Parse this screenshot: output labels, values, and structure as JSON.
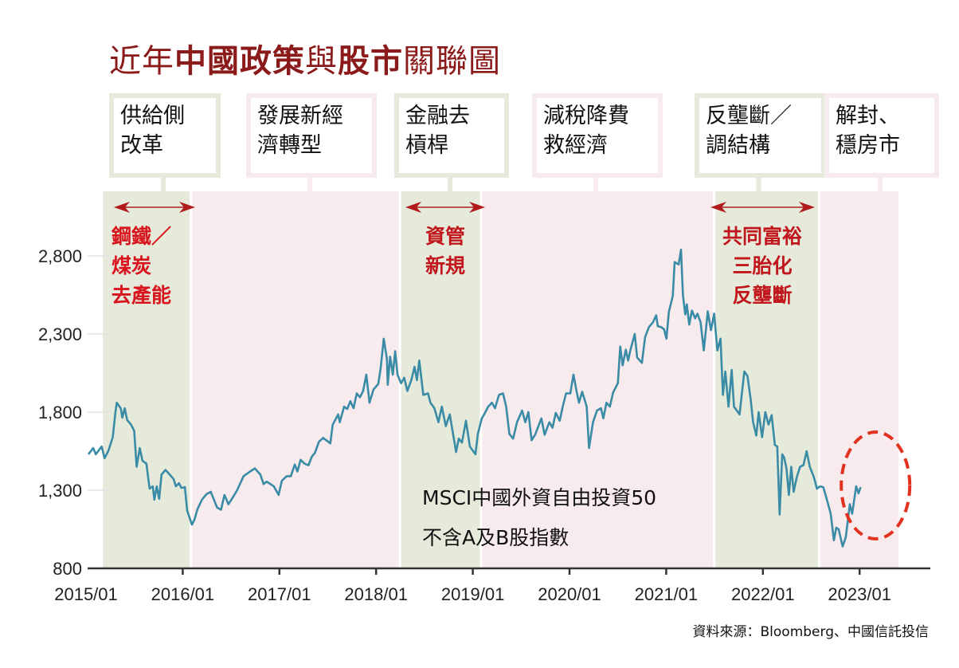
{
  "title": {
    "part1": "近年",
    "part2": "中國政策",
    "part3": "與",
    "part4": "股市",
    "part5": "關聯圖"
  },
  "policies": [
    {
      "label": "供給側\n改革",
      "band": "green"
    },
    {
      "label": "發展新經\n濟轉型",
      "band": "pink"
    },
    {
      "label": "金融去\n槓桿",
      "band": "green"
    },
    {
      "label": "減稅降費\n救經濟",
      "band": "pink"
    },
    {
      "label": "反壟斷／\n調結構",
      "band": "green"
    },
    {
      "label": "解封、\n穩房市",
      "band": "pink"
    }
  ],
  "annotations": [
    {
      "label": "鋼鐵／\n煤炭\n去產能"
    },
    {
      "label": "資管\n新規"
    },
    {
      "label": "共同富裕\n三胎化\n反壟斷"
    }
  ],
  "legend_text": "MSCI中國外資自由投資50\n不含A及B股指數",
  "source": "資料來源：Bloomberg、中國信託投信",
  "colors": {
    "title": "#8b1a1a",
    "line": "#3a8ba5",
    "band_green": "#e6eadb",
    "band_pink": "#f8ebee",
    "annotation_red": "#c0161c",
    "arrow": "#b01c1c",
    "circle": "#e0321f"
  },
  "chart_data": {
    "type": "line",
    "title": "近年中國政策與股市關聯圖",
    "xlabel": "",
    "ylabel": "",
    "ylim": [
      800,
      2900
    ],
    "yticks": [
      800,
      1300,
      1800,
      2300,
      2800
    ],
    "ytick_labels": [
      "800",
      "1,300",
      "1,800",
      "2,300",
      "2,800"
    ],
    "xticks": [
      "2015/01",
      "2016/01",
      "2017/01",
      "2018/01",
      "2019/01",
      "2020/01",
      "2021/01",
      "2022/01",
      "2023/01"
    ],
    "grid": "horizontal",
    "series_name": "MSCI中國外資自由投資50不含A及B股指數",
    "shaded_periods": [
      {
        "start": "2015-03",
        "end": "2016-02",
        "policy": "供給側改革"
      },
      {
        "start": "2016-02",
        "end": "2018-04",
        "policy": "發展新經濟轉型"
      },
      {
        "start": "2018-04",
        "end": "2019-02",
        "policy": "金融去槓桿"
      },
      {
        "start": "2019-02",
        "end": "2021-07",
        "policy": "減稅降費救經濟"
      },
      {
        "start": "2021-07",
        "end": "2022-08",
        "policy": "反壟斷／調結構"
      },
      {
        "start": "2022-08",
        "end": "2023-06",
        "policy": "解封、穩房市"
      }
    ],
    "highlight": "2023-01",
    "points": [
      [
        "2015-01-10",
        1530
      ],
      [
        "2015-01-28",
        1570
      ],
      [
        "2015-02-07",
        1530
      ],
      [
        "2015-03-01",
        1580
      ],
      [
        "2015-03-12",
        1505
      ],
      [
        "2015-03-27",
        1555
      ],
      [
        "2015-04-12",
        1640
      ],
      [
        "2015-04-21",
        1785
      ],
      [
        "2015-04-27",
        1860
      ],
      [
        "2015-05-12",
        1825
      ],
      [
        "2015-05-18",
        1765
      ],
      [
        "2015-05-27",
        1825
      ],
      [
        "2015-06-05",
        1750
      ],
      [
        "2015-06-20",
        1720
      ],
      [
        "2015-07-02",
        1680
      ],
      [
        "2015-07-11",
        1450
      ],
      [
        "2015-07-23",
        1570
      ],
      [
        "2015-08-02",
        1490
      ],
      [
        "2015-08-17",
        1470
      ],
      [
        "2015-08-29",
        1310
      ],
      [
        "2015-09-10",
        1325
      ],
      [
        "2015-09-16",
        1240
      ],
      [
        "2015-09-25",
        1325
      ],
      [
        "2015-10-04",
        1245
      ],
      [
        "2015-10-13",
        1400
      ],
      [
        "2015-10-28",
        1430
      ],
      [
        "2015-11-13",
        1400
      ],
      [
        "2015-11-28",
        1370
      ],
      [
        "2015-12-06",
        1325
      ],
      [
        "2015-12-18",
        1345
      ],
      [
        "2015-12-27",
        1315
      ],
      [
        "2016-01-09",
        1320
      ],
      [
        "2016-01-18",
        1170
      ],
      [
        "2016-01-24",
        1140
      ],
      [
        "2016-02-05",
        1080
      ],
      [
        "2016-02-14",
        1110
      ],
      [
        "2016-02-26",
        1180
      ],
      [
        "2016-03-14",
        1240
      ],
      [
        "2016-03-31",
        1275
      ],
      [
        "2016-04-16",
        1290
      ],
      [
        "2016-05-10",
        1190
      ],
      [
        "2016-05-25",
        1175
      ],
      [
        "2016-06-07",
        1270
      ],
      [
        "2016-06-22",
        1210
      ],
      [
        "2016-07-07",
        1250
      ],
      [
        "2016-07-25",
        1300
      ],
      [
        "2016-08-18",
        1390
      ],
      [
        "2016-09-12",
        1420
      ],
      [
        "2016-09-30",
        1440
      ],
      [
        "2016-10-21",
        1400
      ],
      [
        "2016-11-02",
        1340
      ],
      [
        "2016-11-14",
        1355
      ],
      [
        "2016-12-11",
        1325
      ],
      [
        "2016-12-29",
        1270
      ],
      [
        "2017-01-10",
        1360
      ],
      [
        "2017-01-28",
        1390
      ],
      [
        "2017-02-13",
        1390
      ],
      [
        "2017-02-28",
        1465
      ],
      [
        "2017-03-10",
        1420
      ],
      [
        "2017-03-22",
        1495
      ],
      [
        "2017-04-06",
        1470
      ],
      [
        "2017-04-21",
        1460
      ],
      [
        "2017-05-03",
        1515
      ],
      [
        "2017-05-15",
        1540
      ],
      [
        "2017-05-30",
        1610
      ],
      [
        "2017-06-15",
        1635
      ],
      [
        "2017-07-12",
        1600
      ],
      [
        "2017-07-21",
        1720
      ],
      [
        "2017-08-11",
        1785
      ],
      [
        "2017-08-17",
        1735
      ],
      [
        "2017-09-02",
        1835
      ],
      [
        "2017-09-14",
        1820
      ],
      [
        "2017-09-26",
        1870
      ],
      [
        "2017-10-08",
        1825
      ],
      [
        "2017-10-20",
        1920
      ],
      [
        "2017-11-01",
        1895
      ],
      [
        "2017-11-13",
        1935
      ],
      [
        "2017-11-25",
        2040
      ],
      [
        "2017-12-07",
        1860
      ],
      [
        "2017-12-22",
        1945
      ],
      [
        "2018-01-09",
        1980
      ],
      [
        "2018-01-18",
        2080
      ],
      [
        "2018-01-30",
        2270
      ],
      [
        "2018-02-11",
        2140
      ],
      [
        "2018-02-14",
        1975
      ],
      [
        "2018-02-23",
        2155
      ],
      [
        "2018-03-05",
        2040
      ],
      [
        "2018-03-14",
        2190
      ],
      [
        "2018-03-23",
        2040
      ],
      [
        "2018-04-05",
        1985
      ],
      [
        "2018-04-17",
        2020
      ],
      [
        "2018-04-29",
        1935
      ],
      [
        "2018-05-14",
        2005
      ],
      [
        "2018-05-26",
        2090
      ],
      [
        "2018-06-04",
        2005
      ],
      [
        "2018-06-13",
        2130
      ],
      [
        "2018-06-28",
        1910
      ],
      [
        "2018-07-16",
        1920
      ],
      [
        "2018-07-25",
        1860
      ],
      [
        "2018-08-09",
        1825
      ],
      [
        "2018-08-24",
        1735
      ],
      [
        "2018-09-06",
        1835
      ],
      [
        "2018-09-21",
        1710
      ],
      [
        "2018-10-06",
        1785
      ],
      [
        "2018-10-30",
        1545
      ],
      [
        "2018-11-09",
        1630
      ],
      [
        "2018-11-21",
        1605
      ],
      [
        "2018-12-06",
        1745
      ],
      [
        "2018-12-21",
        1580
      ],
      [
        "2019-01-11",
        1530
      ],
      [
        "2019-01-20",
        1660
      ],
      [
        "2019-02-04",
        1760
      ],
      [
        "2019-02-13",
        1785
      ],
      [
        "2019-02-28",
        1835
      ],
      [
        "2019-03-14",
        1860
      ],
      [
        "2019-03-26",
        1825
      ],
      [
        "2019-04-10",
        1910
      ],
      [
        "2019-04-25",
        1920
      ],
      [
        "2019-05-07",
        1835
      ],
      [
        "2019-05-19",
        1660
      ],
      [
        "2019-06-02",
        1630
      ],
      [
        "2019-06-17",
        1735
      ],
      [
        "2019-07-06",
        1810
      ],
      [
        "2019-07-18",
        1735
      ],
      [
        "2019-07-30",
        1800
      ],
      [
        "2019-08-11",
        1620
      ],
      [
        "2019-08-24",
        1655
      ],
      [
        "2019-09-17",
        1760
      ],
      [
        "2019-09-29",
        1655
      ],
      [
        "2019-10-17",
        1735
      ],
      [
        "2019-10-29",
        1700
      ],
      [
        "2019-11-10",
        1795
      ],
      [
        "2019-11-25",
        1745
      ],
      [
        "2019-12-07",
        1840
      ],
      [
        "2019-12-19",
        1920
      ],
      [
        "2020-01-04",
        1920
      ],
      [
        "2020-01-16",
        2040
      ],
      [
        "2020-01-28",
        1930
      ],
      [
        "2020-02-06",
        1860
      ],
      [
        "2020-02-18",
        1930
      ],
      [
        "2020-03-06",
        1835
      ],
      [
        "2020-03-15",
        1570
      ],
      [
        "2020-03-30",
        1735
      ],
      [
        "2020-04-14",
        1810
      ],
      [
        "2020-04-29",
        1825
      ],
      [
        "2020-05-08",
        1760
      ],
      [
        "2020-05-20",
        1860
      ],
      [
        "2020-06-02",
        1835
      ],
      [
        "2020-06-14",
        1925
      ],
      [
        "2020-06-26",
        1965
      ],
      [
        "2020-07-02",
        1985
      ],
      [
        "2020-07-11",
        2220
      ],
      [
        "2020-07-20",
        2100
      ],
      [
        "2020-08-01",
        2200
      ],
      [
        "2020-08-10",
        2130
      ],
      [
        "2020-08-19",
        2200
      ],
      [
        "2020-09-04",
        2300
      ],
      [
        "2020-09-13",
        2150
      ],
      [
        "2020-10-01",
        2115
      ],
      [
        "2020-10-13",
        2280
      ],
      [
        "2020-10-28",
        2345
      ],
      [
        "2020-11-12",
        2375
      ],
      [
        "2020-11-24",
        2420
      ],
      [
        "2020-11-30",
        2350
      ],
      [
        "2020-12-12",
        2345
      ],
      [
        "2020-12-24",
        2330
      ],
      [
        "2021-01-02",
        2270
      ],
      [
        "2021-01-11",
        2440
      ],
      [
        "2021-01-26",
        2545
      ],
      [
        "2021-02-02",
        2760
      ],
      [
        "2021-02-17",
        2745
      ],
      [
        "2021-02-26",
        2840
      ],
      [
        "2021-03-05",
        2550
      ],
      [
        "2021-03-14",
        2425
      ],
      [
        "2021-03-20",
        2490
      ],
      [
        "2021-03-29",
        2360
      ],
      [
        "2021-04-08",
        2450
      ],
      [
        "2021-04-20",
        2400
      ],
      [
        "2021-04-29",
        2430
      ],
      [
        "2021-05-11",
        2375
      ],
      [
        "2021-05-23",
        2195
      ],
      [
        "2021-06-07",
        2445
      ],
      [
        "2021-06-19",
        2325
      ],
      [
        "2021-07-01",
        2430
      ],
      [
        "2021-07-13",
        2195
      ],
      [
        "2021-07-25",
        2270
      ],
      [
        "2021-08-03",
        1910
      ],
      [
        "2021-08-12",
        2060
      ],
      [
        "2021-08-24",
        1835
      ],
      [
        "2021-09-05",
        2070
      ],
      [
        "2021-09-14",
        1835
      ],
      [
        "2021-10-05",
        1785
      ],
      [
        "2021-10-23",
        2060
      ],
      [
        "2021-11-04",
        2030
      ],
      [
        "2021-11-16",
        1880
      ],
      [
        "2021-11-25",
        1735
      ],
      [
        "2021-12-07",
        1650
      ],
      [
        "2021-12-16",
        1800
      ],
      [
        "2021-12-29",
        1640
      ],
      [
        "2022-01-10",
        1800
      ],
      [
        "2022-01-22",
        1720
      ],
      [
        "2022-02-03",
        1780
      ],
      [
        "2022-02-15",
        1590
      ],
      [
        "2022-02-24",
        1580
      ],
      [
        "2022-03-05",
        1145
      ],
      [
        "2022-03-15",
        1530
      ],
      [
        "2022-03-22",
        1510
      ],
      [
        "2022-03-31",
        1440
      ],
      [
        "2022-04-09",
        1270
      ],
      [
        "2022-04-18",
        1450
      ],
      [
        "2022-04-27",
        1290
      ],
      [
        "2022-05-09",
        1385
      ],
      [
        "2022-05-21",
        1450
      ],
      [
        "2022-06-03",
        1460
      ],
      [
        "2022-06-15",
        1550
      ],
      [
        "2022-06-27",
        1450
      ],
      [
        "2022-07-12",
        1385
      ],
      [
        "2022-07-24",
        1310
      ],
      [
        "2022-08-05",
        1325
      ],
      [
        "2022-08-17",
        1320
      ],
      [
        "2022-08-29",
        1250
      ],
      [
        "2022-09-14",
        1150
      ],
      [
        "2022-09-26",
        980
      ],
      [
        "2022-10-05",
        1060
      ],
      [
        "2022-10-14",
        1050
      ],
      [
        "2022-10-29",
        940
      ],
      [
        "2022-11-10",
        1000
      ],
      [
        "2022-11-25",
        1210
      ],
      [
        "2022-12-04",
        1150
      ],
      [
        "2022-12-19",
        1325
      ],
      [
        "2022-12-28",
        1280
      ],
      [
        "2023-01-05",
        1320
      ]
    ]
  }
}
